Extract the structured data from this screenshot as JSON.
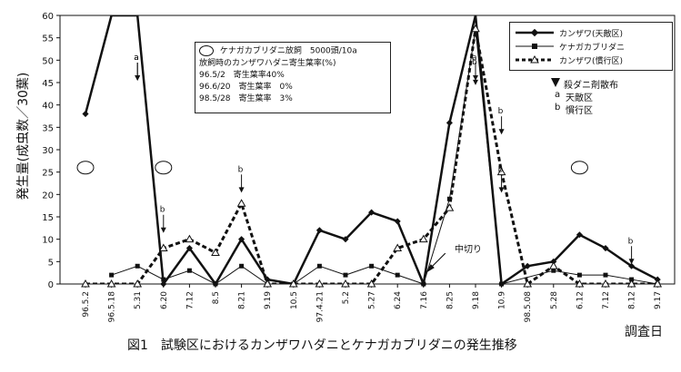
{
  "figure": {
    "caption": "図1　試験区におけるカンザワハダニとケナガカブリダニの発生推移",
    "ylabel": "発生量(成虫数／30葉)",
    "xlabel": "調査日"
  },
  "info": {
    "release_label": "ケナガカブリダニ放飼　5000頭/10a",
    "rate_title": "放飼時のカンザワハダニ寄生葉率(%)",
    "rows": [
      "96.5/2　寄生葉率40%",
      "96.6/20　寄生葉率　0%",
      "98.5/28　寄生葉率　3%"
    ]
  },
  "legend": {
    "series": [
      "カンザワ(天敵区)",
      "ケナガカブリダニ",
      "カンザワ(慣行区)"
    ],
    "pesticide_title": "殺ダニ剤散布",
    "pesticide_a": "天敵区",
    "pesticide_b": "慣行区"
  },
  "annotations": {
    "cut": "中切り",
    "a": "a",
    "b": "b"
  },
  "chart_data": {
    "type": "line",
    "ylim": [
      0,
      60
    ],
    "yticks": [
      0,
      5,
      10,
      15,
      20,
      25,
      30,
      35,
      40,
      45,
      50,
      55,
      60
    ],
    "categories": [
      "96.5.2",
      "96.5.18",
      "5.31",
      "6.20",
      "7.12",
      "8.5",
      "8.21",
      "9.19",
      "10.5",
      "97.4.21",
      "5.2",
      "5.27",
      "6.24",
      "7.16",
      "8.25",
      "9.18",
      "10.9",
      "98.5.08",
      "5.28",
      "6.12",
      "7.12",
      "8.12",
      "9.17"
    ],
    "series": [
      {
        "name": "カンザワ(天敵区)",
        "style": "solid-diamond",
        "color": "#111111",
        "values": [
          38,
          60,
          60,
          0,
          8,
          0,
          10,
          1,
          0,
          12,
          10,
          16,
          14,
          0,
          36,
          60,
          0,
          4,
          5,
          11,
          8,
          4,
          1
        ]
      },
      {
        "name": "ケナガカブリダニ",
        "style": "square",
        "color": "#111111",
        "values": [
          null,
          2,
          4,
          1,
          3,
          0,
          4,
          0,
          0,
          4,
          2,
          4,
          2,
          0,
          19,
          57,
          0,
          null,
          3,
          2,
          2,
          1,
          0
        ]
      },
      {
        "name": "カンザワ(慣行区)",
        "style": "dashed-triangle",
        "color": "#111111",
        "values": [
          0,
          0,
          0,
          8,
          10,
          7,
          18,
          0,
          0,
          0,
          0,
          0,
          8,
          10,
          17,
          57,
          25,
          0,
          4,
          0,
          0,
          0,
          0
        ]
      }
    ],
    "pesticide_a": [
      2,
      2,
      15
    ],
    "pesticide_b": [
      3,
      6,
      15,
      16,
      16,
      21
    ],
    "release_dates": [
      0,
      3,
      19
    ]
  }
}
